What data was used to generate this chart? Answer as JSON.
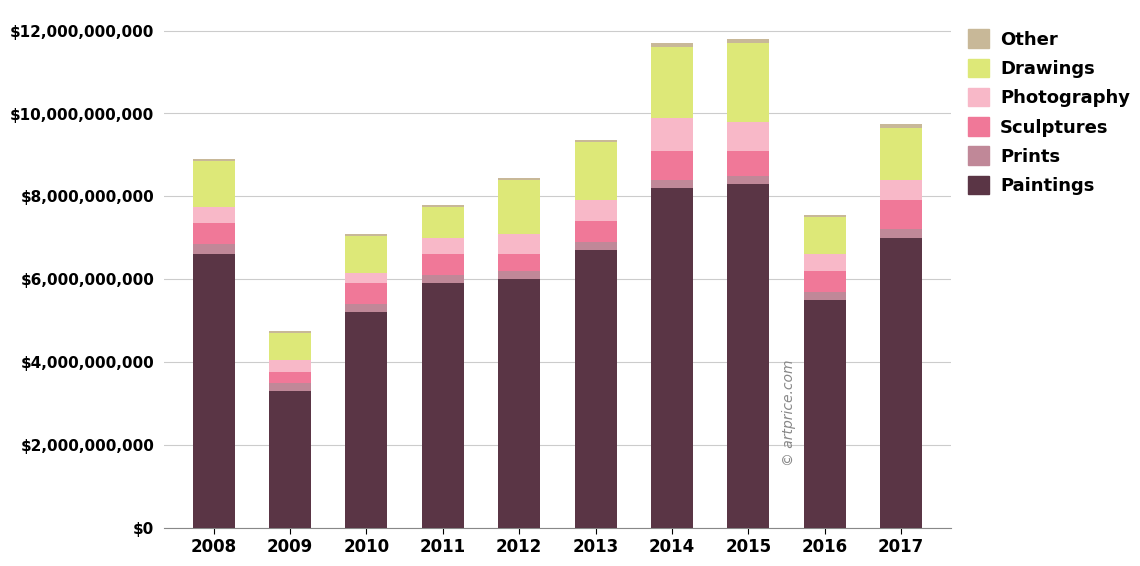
{
  "years": [
    2008,
    2009,
    2010,
    2011,
    2012,
    2013,
    2014,
    2015,
    2016,
    2017
  ],
  "categories": [
    "Paintings",
    "Prints",
    "Sculptures",
    "Photography",
    "Drawings",
    "Other"
  ],
  "colors": [
    "#5a3545",
    "#c08898",
    "#f07898",
    "#f8b8c8",
    "#dde878",
    "#c8b898"
  ],
  "data": {
    "Paintings": [
      6600000000,
      3300000000,
      5200000000,
      5900000000,
      6000000000,
      6700000000,
      8200000000,
      8300000000,
      5500000000,
      7000000000
    ],
    "Prints": [
      250000000,
      200000000,
      200000000,
      200000000,
      200000000,
      200000000,
      200000000,
      200000000,
      200000000,
      200000000
    ],
    "Sculptures": [
      500000000,
      250000000,
      500000000,
      500000000,
      400000000,
      500000000,
      700000000,
      600000000,
      500000000,
      700000000
    ],
    "Photography": [
      400000000,
      300000000,
      250000000,
      400000000,
      500000000,
      500000000,
      800000000,
      700000000,
      400000000,
      500000000
    ],
    "Drawings": [
      1100000000,
      650000000,
      900000000,
      750000000,
      1300000000,
      1400000000,
      1700000000,
      1900000000,
      900000000,
      1250000000
    ],
    "Other": [
      50000000,
      50000000,
      50000000,
      50000000,
      50000000,
      50000000,
      100000000,
      100000000,
      50000000,
      100000000
    ]
  },
  "ylim": [
    0,
    12500000000
  ],
  "yticks": [
    0,
    2000000000,
    4000000000,
    6000000000,
    8000000000,
    10000000000,
    12000000000
  ],
  "ytick_labels": [
    "$0",
    "$2,000,000,000",
    "$4,000,000,000",
    "$6,000,000,000",
    "$8,000,000,000",
    "$10,000,000,000",
    "$12,000,000,000"
  ],
  "background_color": "#ffffff",
  "watermark": "© artprice.com",
  "bar_width": 0.55
}
